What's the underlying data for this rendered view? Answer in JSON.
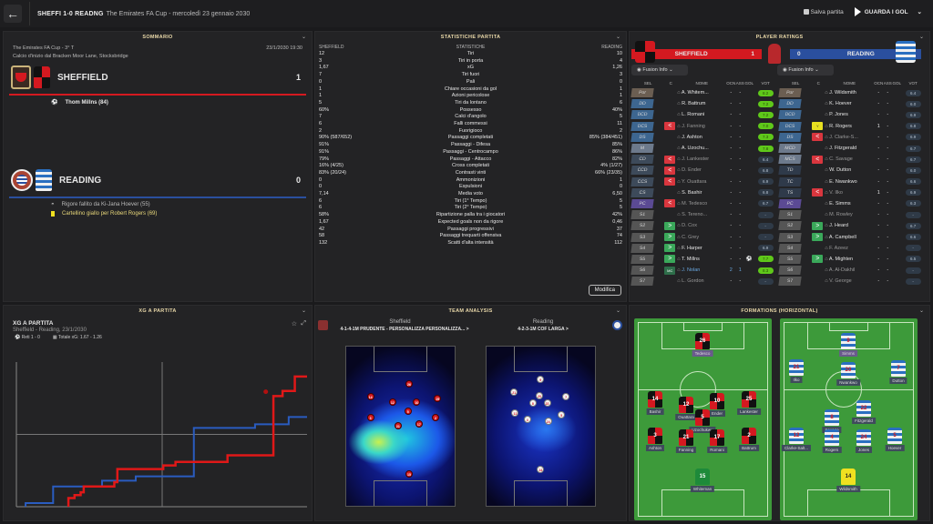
{
  "topbar": {
    "score": "SHEFFI 1-0 READNG",
    "subtitle": "The Emirates FA Cup - mercoledì 23 gennaio 2030",
    "save": "Salva partita",
    "watch": "GUARDA I GOL"
  },
  "summary": {
    "title": "SOMMARIO",
    "competition": "The Emirates FA Cup - 3° T",
    "datetime": "23/1/2030 19:30",
    "venue": "Calcio d'inizio dal Bracken Moor Lane, Stocksbridge",
    "home": {
      "name": "SHEFFIELD",
      "score": "1",
      "events": [
        {
          "icon": "ball-icon",
          "text": "Thom Millns (84)"
        }
      ]
    },
    "away": {
      "name": "READING",
      "score": "0",
      "events": [
        {
          "icon": "missed-penalty-icon",
          "text": "Rigore fallito da Ki-Jana Hoever (55)"
        },
        {
          "icon": "yellow-card-icon",
          "text": "Cartellino giallo per Robert Rogers (69)"
        }
      ]
    }
  },
  "stats": {
    "title": "STATISTICHE PARTITA",
    "home_label": "SHEFFIELD",
    "mid_label": "STATISTICHE",
    "away_label": "READING",
    "modifica": "Modifica",
    "rows": [
      [
        "12",
        "Tiri",
        "10"
      ],
      [
        "3",
        "Tiri in porta",
        "4"
      ],
      [
        "1,67",
        "xG",
        "1,26"
      ],
      [
        "7",
        "Tiri fuori",
        "3"
      ],
      [
        "0",
        "Pali",
        "0"
      ],
      [
        "1",
        "Chiare occasioni da gol",
        "1"
      ],
      [
        "1",
        "Azioni pericolose",
        "1"
      ],
      [
        "5",
        "Tiri da lontano",
        "6"
      ],
      [
        "60%",
        "Possesso",
        "40%"
      ],
      [
        "7",
        "Calci d'angolo",
        "5"
      ],
      [
        "6",
        "Falli commessi",
        "11"
      ],
      [
        "2",
        "Fuorigioco",
        "2"
      ],
      [
        "90% (587/652)",
        "Passaggi completati",
        "85% (384/451)"
      ],
      [
        "91%",
        "Passaggi - Difesa",
        "85%"
      ],
      [
        "91%",
        "Passaggi - Centrocampo",
        "86%"
      ],
      [
        "79%",
        "Passaggi - Attacco",
        "82%"
      ],
      [
        "16% (4/25)",
        "Cross completati",
        "4% (1/27)"
      ],
      [
        "83% (20/24)",
        "Contrasti vinti",
        "66% (23/35)"
      ],
      [
        "0",
        "Ammonizioni",
        "1"
      ],
      [
        "0",
        "Espulsioni",
        "0"
      ],
      [
        "7,14",
        "Media voto",
        "6,50"
      ],
      [
        "6",
        "Tiri (1° Tempo)",
        "5"
      ],
      [
        "6",
        "Tiri (2° Tempo)",
        "5"
      ],
      [
        "58%",
        "Ripartizione palla tra i giocatori",
        "42%"
      ],
      [
        "1,67",
        "Expected goals non da rigore",
        "0,46"
      ],
      [
        "42",
        "Passaggi progressivi",
        "37"
      ],
      [
        "58",
        "Passaggi trequarti offensiva",
        "74"
      ],
      [
        "132",
        "Scatti d'alta intensità",
        "112"
      ]
    ]
  },
  "ratings": {
    "title": "PLAYER RATINGS",
    "home": "SHEFFIELD",
    "home_score": "1",
    "away": "READING",
    "away_score": "0",
    "fusion": "Fusion Info",
    "cols": [
      "SEL",
      "C",
      "NOME",
      "OCN",
      "ASS",
      "GOL",
      "VOT"
    ],
    "home_rows": [
      [
        "Por",
        "",
        "A. Whitem...",
        "-",
        "-",
        "",
        "8.2"
      ],
      [
        "DD",
        "",
        "R. Battrum",
        "-",
        "-",
        "",
        "7.2"
      ],
      [
        "DCD",
        "",
        "L. Romani",
        "-",
        "-",
        "",
        "7.2"
      ],
      [
        "DCS",
        "<",
        "J. Fanning",
        "-",
        "-",
        "",
        "7.0"
      ],
      [
        "DS",
        "",
        "J. Ashton",
        "-",
        "-",
        "",
        "7.3"
      ],
      [
        "M",
        "",
        "A. Uzochu...",
        "-",
        "-",
        "",
        "7.8"
      ],
      [
        "CD",
        "<",
        "J. Lankester",
        "-",
        "-",
        "",
        "6.4"
      ],
      [
        "CCD",
        "<",
        "D. Ender",
        "-",
        "-",
        "",
        "6.8"
      ],
      [
        "CCS",
        "<",
        "Y. Ouattara",
        "-",
        "-",
        "",
        "6.9"
      ],
      [
        "CS",
        "",
        "S. Bashir",
        "-",
        "-",
        "",
        "6.8"
      ],
      [
        "PC",
        "<",
        "M. Tedesco",
        "-",
        "-",
        "",
        "6.7"
      ],
      [
        "S1",
        "",
        "S. Tereno...",
        "-",
        "-",
        "",
        "-"
      ],
      [
        "S2",
        ">",
        "D. Cox",
        "-",
        "-",
        "",
        "-"
      ],
      [
        "S3",
        ">",
        "C. Grey",
        "-",
        "-",
        "",
        "-"
      ],
      [
        "S4",
        ">",
        "F. Harper",
        "-",
        "-",
        "",
        "6.9"
      ],
      [
        "S5",
        ">",
        "T. Millns",
        "-",
        "-",
        "⚽",
        "7.7"
      ],
      [
        "S6",
        "MC",
        "J. Nolan",
        "2",
        "1",
        "",
        "8.3"
      ],
      [
        "S7",
        "",
        "L. Gordon",
        "-",
        "-",
        "",
        "-"
      ]
    ],
    "away_rows": [
      [
        "Por",
        "",
        "J. Wildsmith",
        "-",
        "-",
        "",
        "6.4"
      ],
      [
        "DD",
        "",
        "K. Hoever",
        "-",
        "-",
        "",
        "6.0"
      ],
      [
        "DCD",
        "",
        "P. Jones",
        "-",
        "-",
        "",
        "6.9"
      ],
      [
        "DCS",
        "Y",
        "R. Rogers",
        "1",
        "-",
        "",
        "6.8"
      ],
      [
        "DS",
        "<",
        "J. Clarke-S...",
        "-",
        "-",
        "",
        "6.9"
      ],
      [
        "MCD",
        "",
        "J. Fitzgerald",
        "-",
        "-",
        "",
        "6.7"
      ],
      [
        "MCS",
        "<",
        "C. Savage",
        "-",
        "-",
        "",
        "6.7"
      ],
      [
        "TD",
        "",
        "W. Dutton",
        "-",
        "-",
        "",
        "6.0"
      ],
      [
        "TC",
        "",
        "E. Nwankwo",
        "-",
        "-",
        "",
        "6.6"
      ],
      [
        "TS",
        "<",
        "V. Ilko",
        "1",
        "-",
        "",
        "6.9"
      ],
      [
        "PC",
        "",
        "E. Simms",
        "-",
        "-",
        "",
        "6.3"
      ],
      [
        "S1",
        "",
        "M. Rowley",
        "-",
        "-",
        "",
        "-"
      ],
      [
        "S2",
        ">",
        "J. Heard",
        "-",
        "-",
        "",
        "6.7"
      ],
      [
        "S3",
        ">",
        "A. Campbell",
        "-",
        "-",
        "",
        "6.6"
      ],
      [
        "S4",
        "",
        "F. Azeez",
        "-",
        "-",
        "",
        "-"
      ],
      [
        "S5",
        ">",
        "A. Mighten",
        "-",
        "-",
        "",
        "6.5"
      ],
      [
        "S6",
        "",
        "A. Al-Dakhil",
        "-",
        "-",
        "",
        "-"
      ],
      [
        "S7",
        "",
        "V. George",
        "-",
        "-",
        "",
        "-"
      ]
    ]
  },
  "xg": {
    "panel_title": "XG A PARTITA",
    "title": "XG A PARTITA",
    "subtitle": "Sheffield - Reading, 23/1/2030",
    "goals": "Reti 1 - 0",
    "total": "Totale xG: 1.67 - 1.26"
  },
  "analysis": {
    "title": "TEAM ANALYSIS",
    "home": "Sheffield",
    "home_tactic": "4-1-4-1M PRUDENTE - PERSONALIZZA PERSONALIZZA... >",
    "away": "Reading",
    "away_tactic": "4-2-3-1M COF LARGA >",
    "home_dots": [
      "26",
      "14",
      "12",
      "10",
      "25",
      "5",
      "3",
      "21",
      "17",
      "2",
      "15"
    ],
    "away_dots": [
      "9",
      "21",
      "20",
      "7",
      "8",
      "22",
      "12",
      "4",
      "24",
      "5",
      "14"
    ]
  },
  "formations": {
    "title": "FORMATIONS (HORIZONTAL)",
    "home": [
      {
        "n": "26",
        "name": "Tedesco"
      },
      {
        "n": "14",
        "name": "Bashir"
      },
      {
        "n": "12",
        "name": "Ouattara"
      },
      {
        "n": "10",
        "name": "Ender"
      },
      {
        "n": "25",
        "name": "Lankester"
      },
      {
        "n": "5",
        "name": "Uzochukwu"
      },
      {
        "n": "3",
        "name": "Ashton"
      },
      {
        "n": "21",
        "name": "Fanning"
      },
      {
        "n": "17",
        "name": "Romani"
      },
      {
        "n": "2",
        "name": "Battrum"
      },
      {
        "n": "15",
        "name": "Whiteman"
      }
    ],
    "away": [
      {
        "n": "9",
        "name": "Simms"
      },
      {
        "n": "21",
        "name": "Ilko"
      },
      {
        "n": "20",
        "name": "Nwankwo"
      },
      {
        "n": "7",
        "name": "Dutton"
      },
      {
        "n": "8",
        "name": "Savage"
      },
      {
        "n": "22",
        "name": "Fitzgerald"
      },
      {
        "n": "12",
        "name": "Clarke-Salt..."
      },
      {
        "n": "4",
        "name": "Rogers"
      },
      {
        "n": "24",
        "name": "Jones"
      },
      {
        "n": "5",
        "name": "Hoever"
      },
      {
        "n": "14",
        "name": "Wildsmith"
      }
    ]
  },
  "colors": {
    "home": "#d41920",
    "away": "#2a4f9e",
    "accent": "#e8d7a8"
  }
}
